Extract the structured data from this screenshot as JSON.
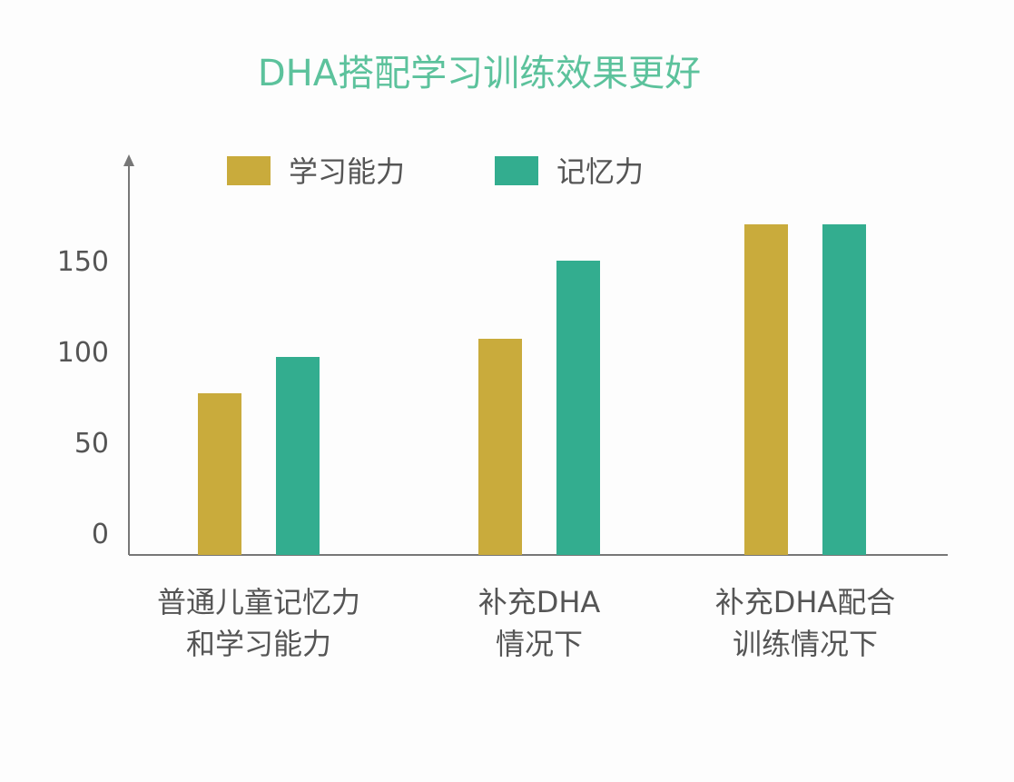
{
  "chart_data": {
    "type": "bar",
    "title": "DHA搭配学习训练效果更好",
    "categories": [
      [
        "普通儿童记忆力",
        "和学习能力"
      ],
      [
        "补充DHA",
        "情况下"
      ],
      [
        "补充DHA配合",
        "训练情况下"
      ]
    ],
    "series": [
      {
        "name": "学习能力",
        "values": [
          77,
          107,
          170
        ],
        "color": "#c9ab3c"
      },
      {
        "name": "记忆力",
        "values": [
          97,
          150,
          170
        ],
        "color": "#33ad8f"
      }
    ],
    "yticks": [
      0,
      50,
      100,
      150
    ],
    "ylim": [
      -12,
      220
    ],
    "grid": false,
    "legend_position": "top",
    "title_color": "#5cc29c",
    "text_color": "#555555",
    "axis_color": "#777777"
  }
}
